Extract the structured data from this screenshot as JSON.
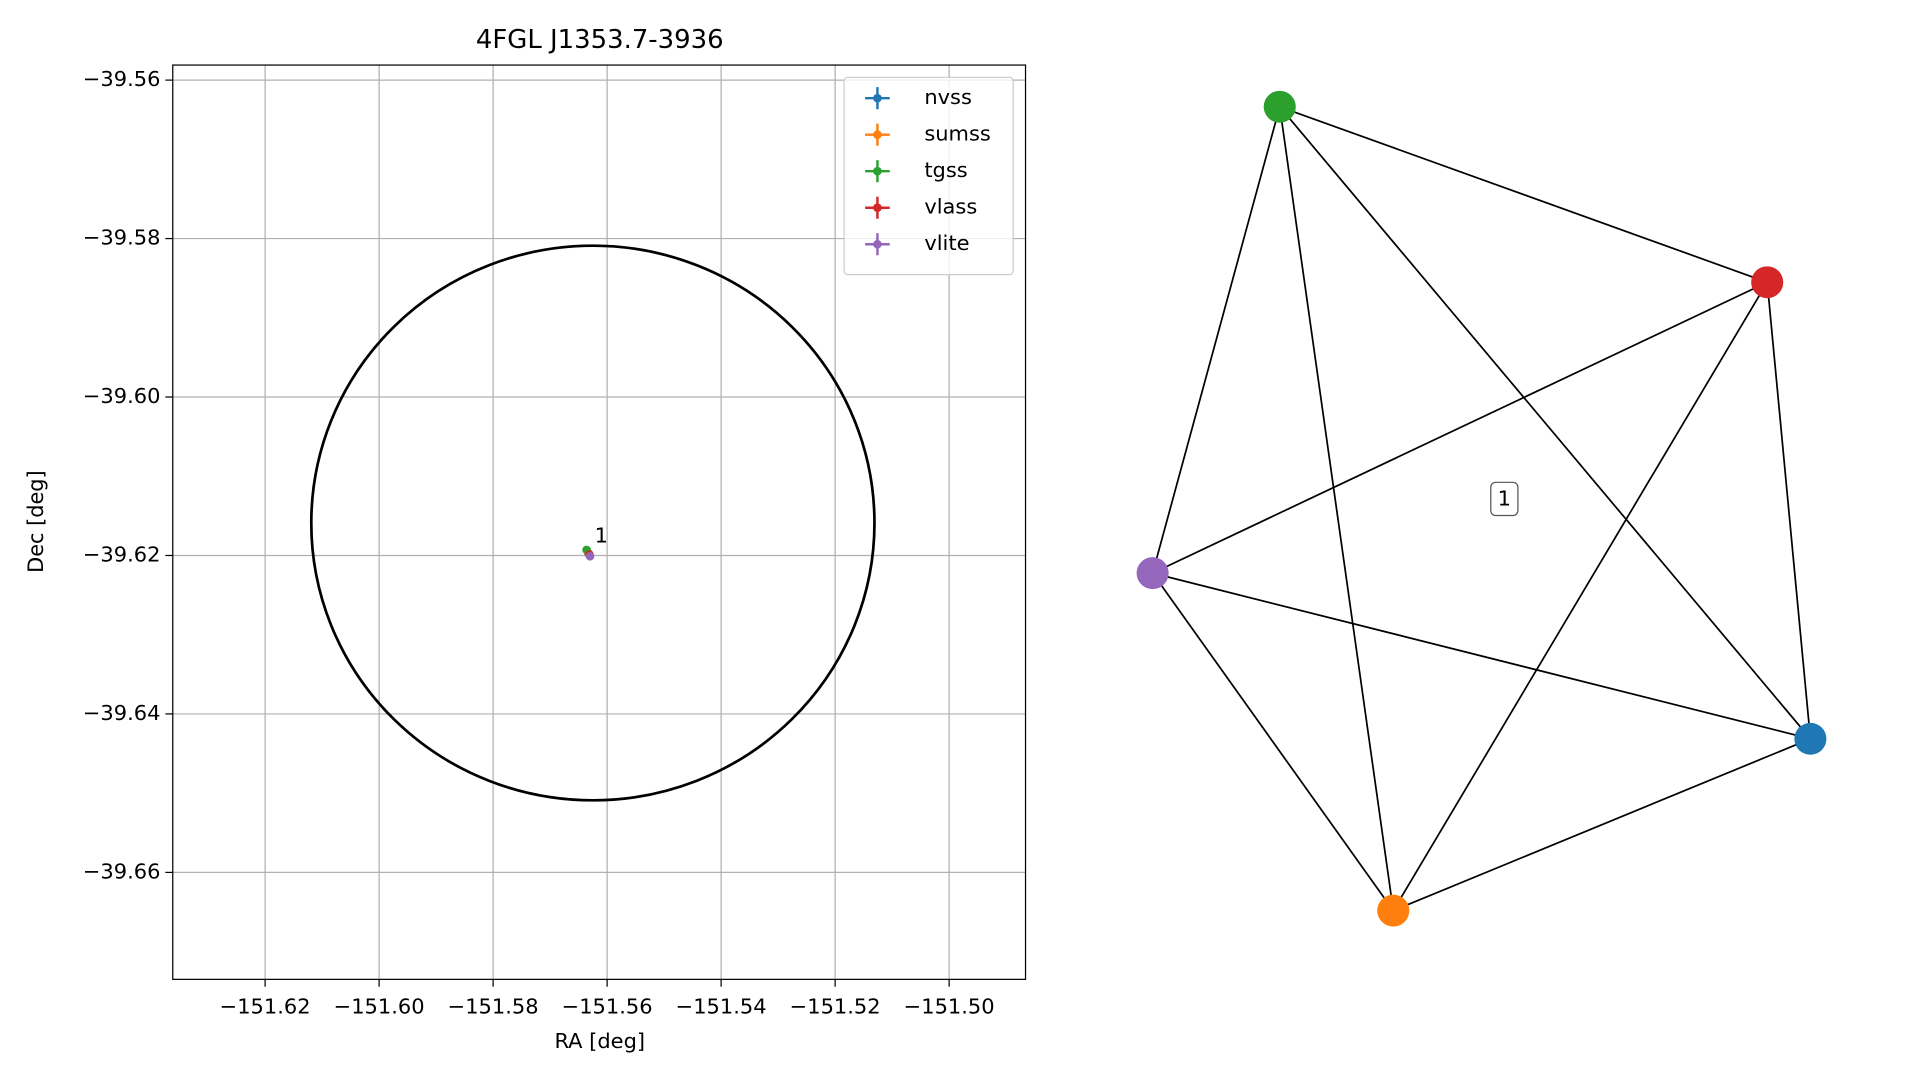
{
  "chart_data": [
    {
      "type": "scatter",
      "title": "4FGL J1353.7-3936",
      "xlabel": "RA [deg]",
      "ylabel": "Dec [deg]",
      "xlim": [
        -151.6362,
        -151.4866
      ],
      "ylim": [
        -39.6735,
        -39.5581
      ],
      "xticks": [
        {
          "value": -151.62,
          "label": "−151.62"
        },
        {
          "value": -151.6,
          "label": "−151.60"
        },
        {
          "value": -151.58,
          "label": "−151.58"
        },
        {
          "value": -151.56,
          "label": "−151.56"
        },
        {
          "value": -151.54,
          "label": "−151.54"
        },
        {
          "value": -151.52,
          "label": "−151.52"
        },
        {
          "value": -151.5,
          "label": "−151.50"
        }
      ],
      "yticks": [
        {
          "value": -39.56,
          "label": "−39.56"
        },
        {
          "value": -39.58,
          "label": "−39.58"
        },
        {
          "value": -39.6,
          "label": "−39.60"
        },
        {
          "value": -39.62,
          "label": "−39.62"
        },
        {
          "value": -39.64,
          "label": "−39.64"
        },
        {
          "value": -39.66,
          "label": "−39.66"
        }
      ],
      "grid": true,
      "legend": "upper right",
      "series": [
        {
          "name": "nvss",
          "color": "#1f77b4",
          "x": [
            -151.5633
          ],
          "y": [
            -39.6197
          ]
        },
        {
          "name": "sumss",
          "color": "#ff7f0e",
          "x": [
            -151.5633
          ],
          "y": [
            -39.6197
          ]
        },
        {
          "name": "tgss",
          "color": "#2ca02c",
          "x": [
            -151.5636
          ],
          "y": [
            -39.6193
          ]
        },
        {
          "name": "vlass",
          "color": "#d62728",
          "x": [
            -151.5631
          ],
          "y": [
            -39.6199
          ]
        },
        {
          "name": "vlite",
          "color": "#9467bd",
          "x": [
            -151.563
          ],
          "y": [
            -39.6201
          ]
        }
      ],
      "ellipse": {
        "x": -151.5625,
        "y": -39.6159,
        "rx": 0.0494,
        "ry": 0.035,
        "color": "#000000"
      },
      "annotations": [
        {
          "text": "1",
          "x": -151.5622,
          "y": -39.6176
        }
      ]
    },
    {
      "type": "network",
      "label": "1",
      "nodes": [
        {
          "color": "#1f77b4"
        },
        {
          "color": "#ff7f0e"
        },
        {
          "color": "#2ca02c"
        },
        {
          "color": "#d62728"
        },
        {
          "color": "#9467bd"
        }
      ],
      "edges": [
        [
          0,
          1
        ],
        [
          0,
          2
        ],
        [
          0,
          3
        ],
        [
          0,
          4
        ],
        [
          1,
          2
        ],
        [
          1,
          3
        ],
        [
          1,
          4
        ],
        [
          2,
          3
        ],
        [
          2,
          4
        ],
        [
          3,
          4
        ]
      ]
    }
  ]
}
